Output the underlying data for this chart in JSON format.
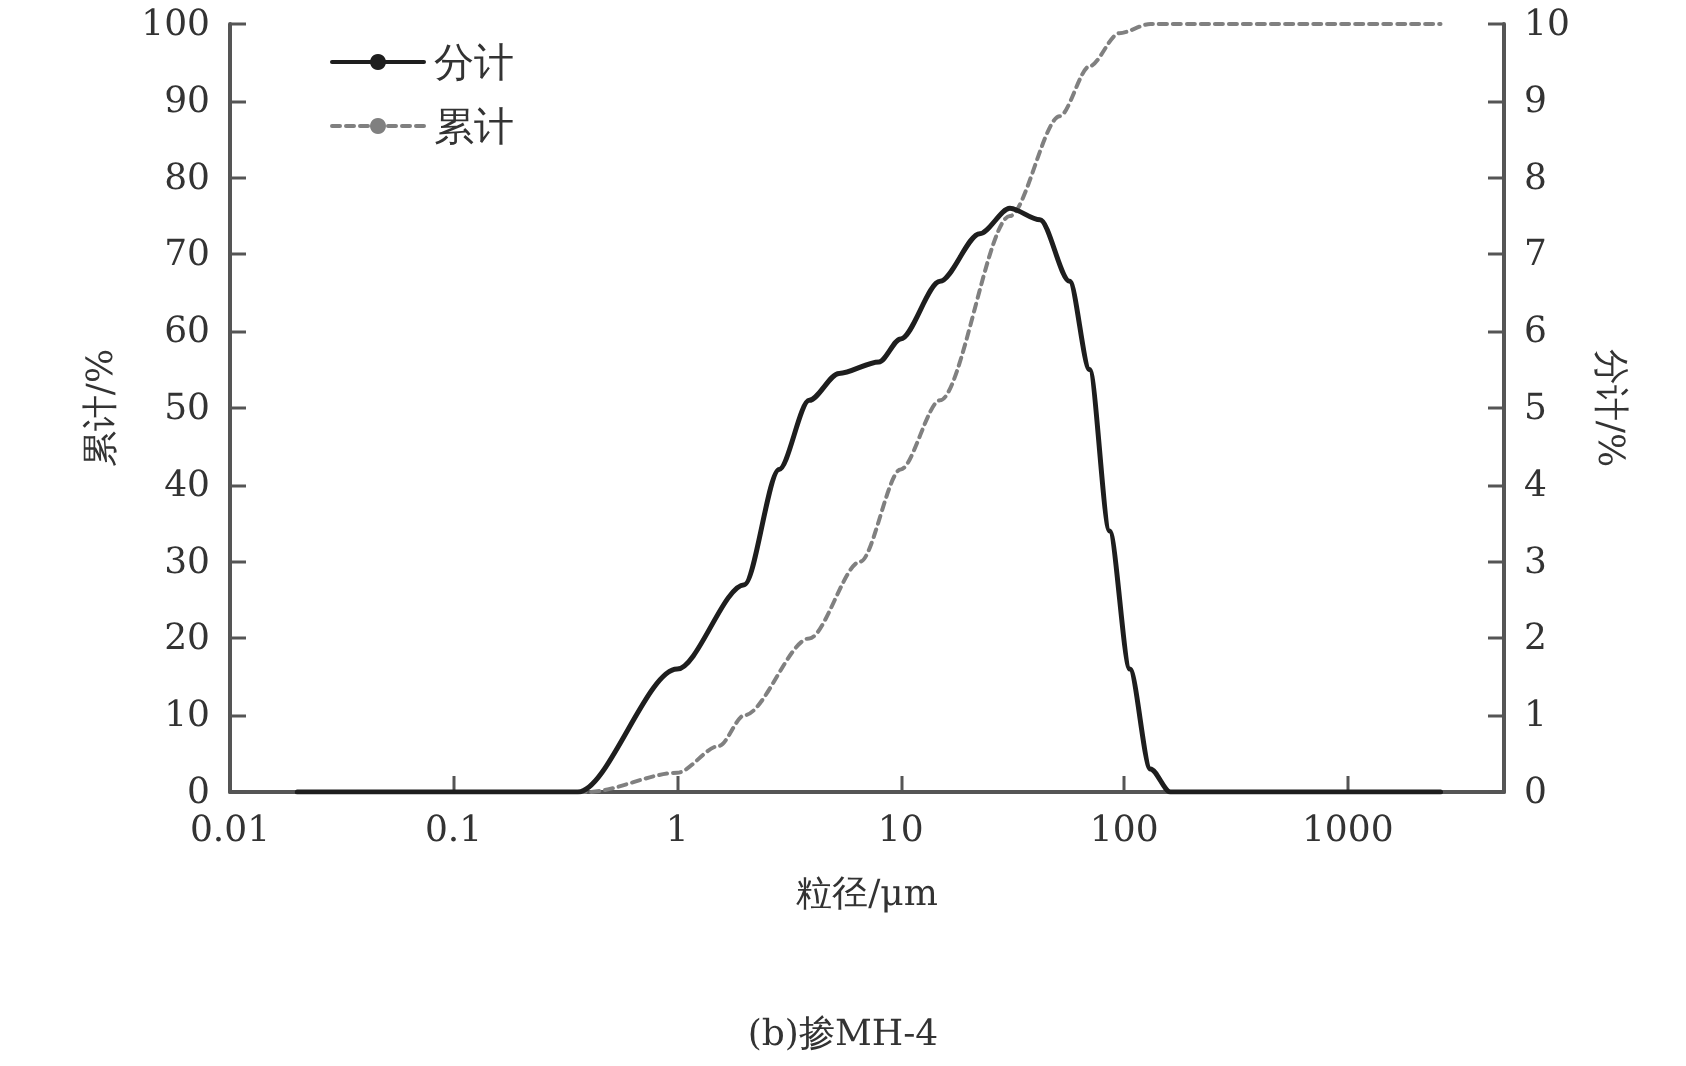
{
  "chart_data": {
    "type": "line",
    "title": "(b)掺MH-4",
    "xlabel": "粒径/μm",
    "ylabel": "累计/%",
    "y2label": "分计/%",
    "log": "x",
    "xlim": [
      0.01,
      5000
    ],
    "xticks": [
      0.01,
      0.1,
      1,
      10,
      100,
      1000
    ],
    "ylim": [
      0,
      100
    ],
    "yticks": [
      0,
      10,
      20,
      30,
      40,
      50,
      60,
      70,
      80,
      90,
      100
    ],
    "y2lim": [
      0,
      10
    ],
    "y2ticks": [
      0,
      1,
      2,
      3,
      4,
      5,
      6,
      7,
      8,
      9,
      10
    ],
    "grid": false,
    "legend": "top left",
    "marker": "none",
    "series": [
      {
        "name": "分计",
        "color": "#1e1e1e",
        "axis": "y2",
        "line_style": "solid",
        "x": [
          0.02,
          0.36,
          1,
          2,
          2.86,
          3.9,
          5.3,
          8,
          10,
          15,
          22.6,
          30.8,
          42,
          57,
          70,
          86,
          106,
          131,
          161,
          2600
        ],
        "values": [
          0,
          0,
          1.6,
          2.7,
          4.2,
          5.1,
          5.45,
          5.6,
          5.9,
          6.65,
          7.27,
          7.6,
          7.45,
          6.65,
          5.5,
          3.4,
          1.6,
          0.3,
          0,
          0
        ]
      },
      {
        "name": "累计",
        "color": "#808080",
        "line_style": "dashed",
        "x": [
          0.02,
          0.4,
          1,
          1.54,
          2,
          3.9,
          6.6,
          10,
          15,
          30.8,
          51.5,
          70,
          95,
          131,
          2600
        ],
        "values": [
          0,
          0,
          2.5,
          6,
          10,
          20,
          30,
          42,
          51,
          75,
          88,
          94.5,
          98.8,
          100,
          100
        ]
      }
    ]
  }
}
